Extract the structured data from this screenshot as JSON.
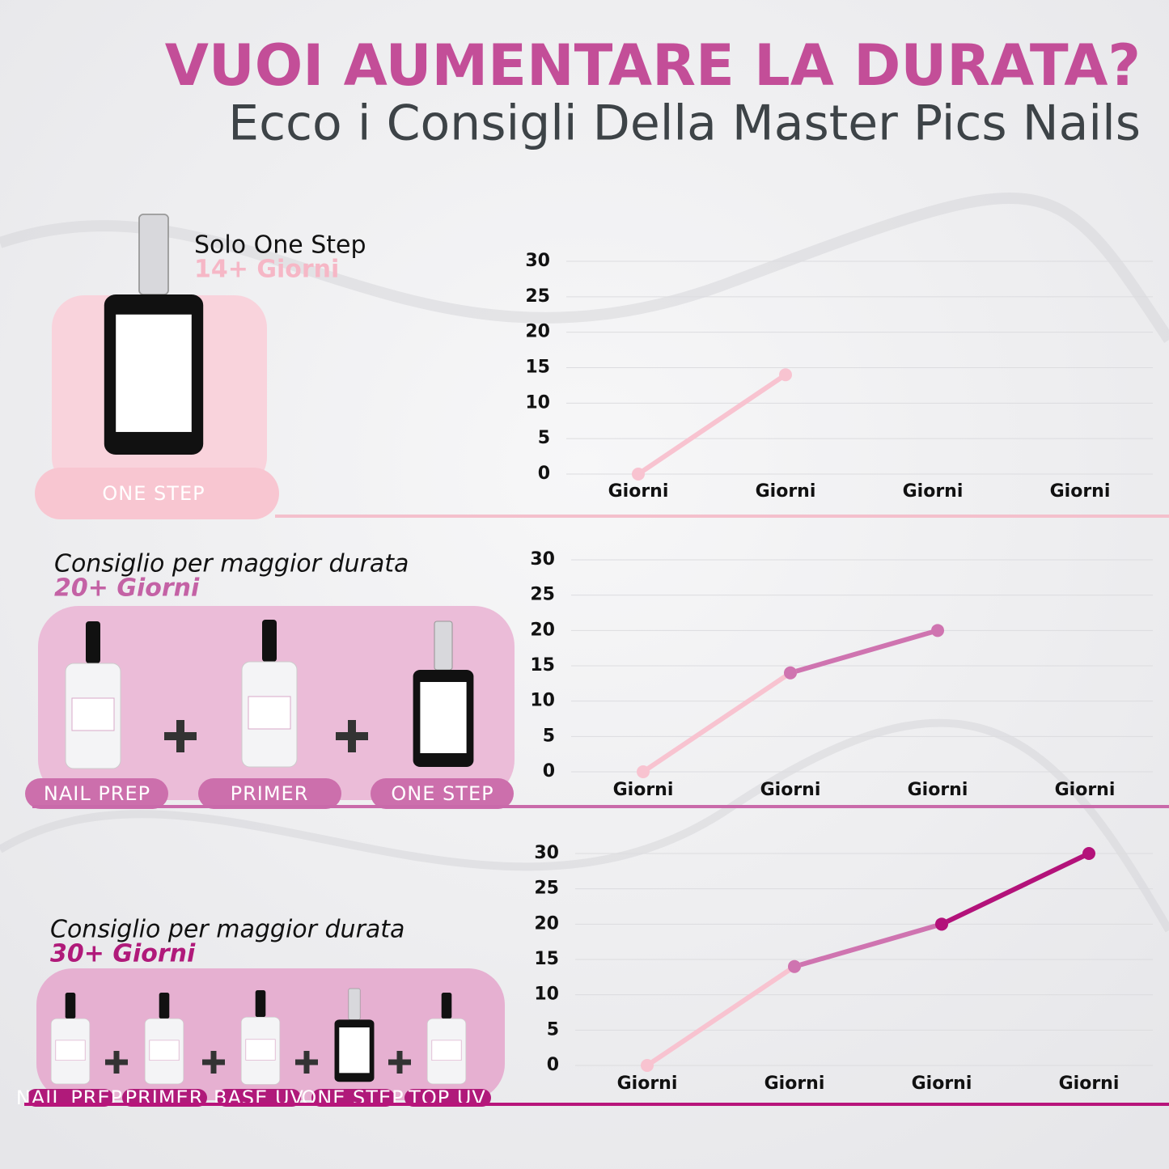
{
  "header": {
    "title": "VUOI AUMENTARE LA DURATA?",
    "subtitle": "Ecco i Consigli Della Master Pics Nails"
  },
  "panels": [
    {
      "heading": "Solo One Step",
      "duration": "14+ Giorni",
      "products": [
        "ONE STEP"
      ]
    },
    {
      "heading": "Consiglio per maggior durata",
      "duration": "20+ Giorni",
      "products": [
        "NAIL PREP",
        "PRIMER",
        "ONE STEP"
      ]
    },
    {
      "heading": "Consiglio per maggior durata",
      "duration": "30+ Giorni",
      "products": [
        "NAIL PREP",
        "PRIMER",
        "BASE UV",
        "ONE STEP",
        "TOP UV"
      ]
    }
  ],
  "chart_data": [
    {
      "type": "line",
      "categories": [
        "Giorni",
        "Giorni",
        "Giorni",
        "Giorni"
      ],
      "series": [
        {
          "color": "#f8c3d0",
          "values": [
            0,
            14,
            null,
            null
          ]
        }
      ],
      "ylim": [
        0,
        30
      ],
      "yticks": [
        0,
        5,
        10,
        15,
        20,
        25,
        30
      ],
      "grid": true
    },
    {
      "type": "line",
      "categories": [
        "Giorni",
        "Giorni",
        "Giorni",
        "Giorni"
      ],
      "series": [
        {
          "color": "#f8c3d0",
          "values": [
            0,
            14,
            null,
            null
          ]
        },
        {
          "color": "#cf74b0",
          "values": [
            null,
            14,
            20,
            null
          ]
        }
      ],
      "ylim": [
        0,
        30
      ],
      "yticks": [
        0,
        5,
        10,
        15,
        20,
        25,
        30
      ],
      "grid": true
    },
    {
      "type": "line",
      "categories": [
        "Giorni",
        "Giorni",
        "Giorni",
        "Giorni"
      ],
      "series": [
        {
          "color": "#f8c3d0",
          "values": [
            0,
            14,
            null,
            null
          ]
        },
        {
          "color": "#cf74b0",
          "values": [
            null,
            14,
            20,
            null
          ]
        },
        {
          "color": "#b3127a",
          "values": [
            null,
            null,
            20,
            30
          ]
        }
      ],
      "ylim": [
        0,
        30
      ],
      "yticks": [
        0,
        5,
        10,
        15,
        20,
        25,
        30
      ],
      "grid": true
    }
  ]
}
